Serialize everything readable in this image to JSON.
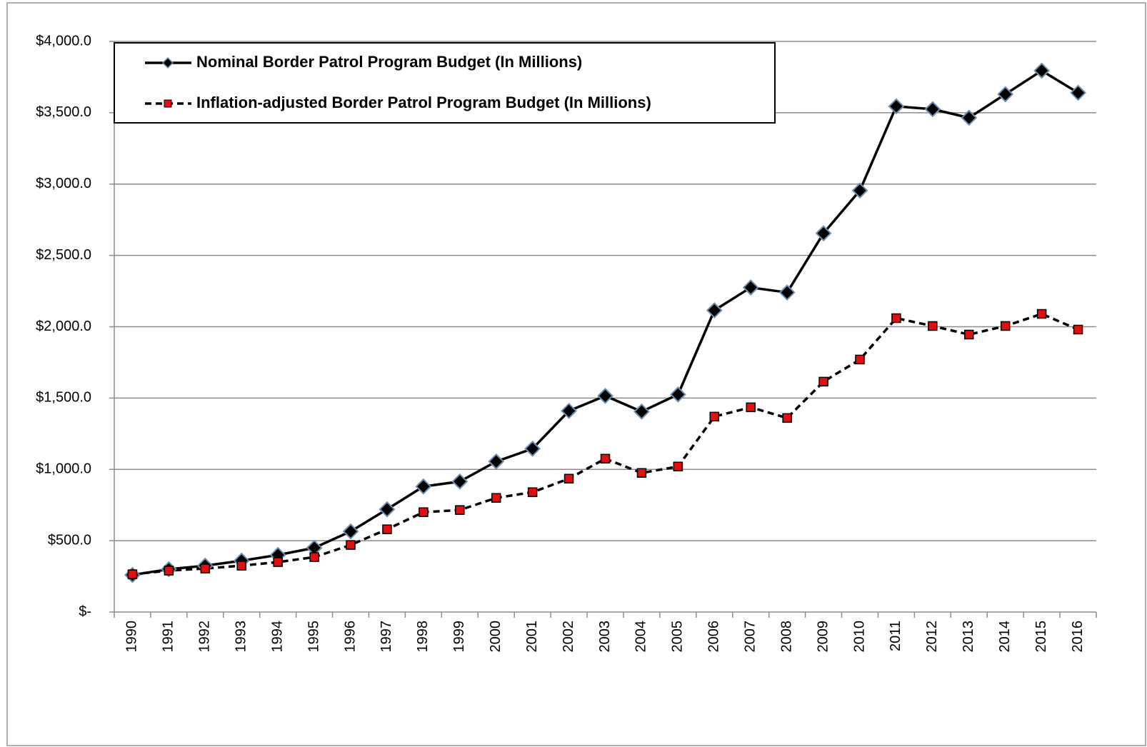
{
  "chart_data": {
    "type": "line",
    "categories": [
      "1990",
      "1991",
      "1992",
      "1993",
      "1994",
      "1995",
      "1996",
      "1997",
      "1998",
      "1999",
      "2000",
      "2001",
      "2002",
      "2003",
      "2004",
      "2005",
      "2006",
      "2007",
      "2008",
      "2009",
      "2010",
      "2011",
      "2012",
      "2013",
      "2014",
      "2015",
      "2016"
    ],
    "series": [
      {
        "name": "Nominal Border Patrol Program Budget (In Millions)",
        "color": "#000000",
        "marker": "diamond",
        "marker_fill": "#000000",
        "marker_stroke": "#6f8fb0",
        "dashed": false,
        "values": [
          260,
          300,
          325,
          360,
          400,
          450,
          565,
          720,
          880,
          915,
          1055,
          1145,
          1410,
          1515,
          1405,
          1525,
          2115,
          2275,
          2240,
          2655,
          2955,
          3545,
          3525,
          3465,
          3630,
          3795,
          3640
        ]
      },
      {
        "name": "Inflation-adjusted Border Patrol Program Budget (In Millions)",
        "color": "#000000",
        "marker": "square",
        "marker_fill": "#e01010",
        "marker_stroke": "#000000",
        "dashed": true,
        "values": [
          265,
          290,
          305,
          325,
          350,
          385,
          470,
          580,
          700,
          715,
          800,
          840,
          935,
          1075,
          975,
          1020,
          1370,
          1435,
          1360,
          1615,
          1770,
          2060,
          2005,
          1945,
          2005,
          2090,
          1980
        ]
      }
    ],
    "ylim": [
      0,
      4000
    ],
    "yticks": [
      {
        "value": 0,
        "label": "$-"
      },
      {
        "value": 500,
        "label": "$500.0"
      },
      {
        "value": 1000,
        "label": "$1,000.0"
      },
      {
        "value": 1500,
        "label": "$1,500.0"
      },
      {
        "value": 2000,
        "label": "$2,000.0"
      },
      {
        "value": 2500,
        "label": "$2,500.0"
      },
      {
        "value": 3000,
        "label": "$3,000.0"
      },
      {
        "value": 3500,
        "label": "$3,500.0"
      },
      {
        "value": 4000,
        "label": "$4,000.0"
      }
    ],
    "grid": true,
    "legend": "upper left"
  }
}
